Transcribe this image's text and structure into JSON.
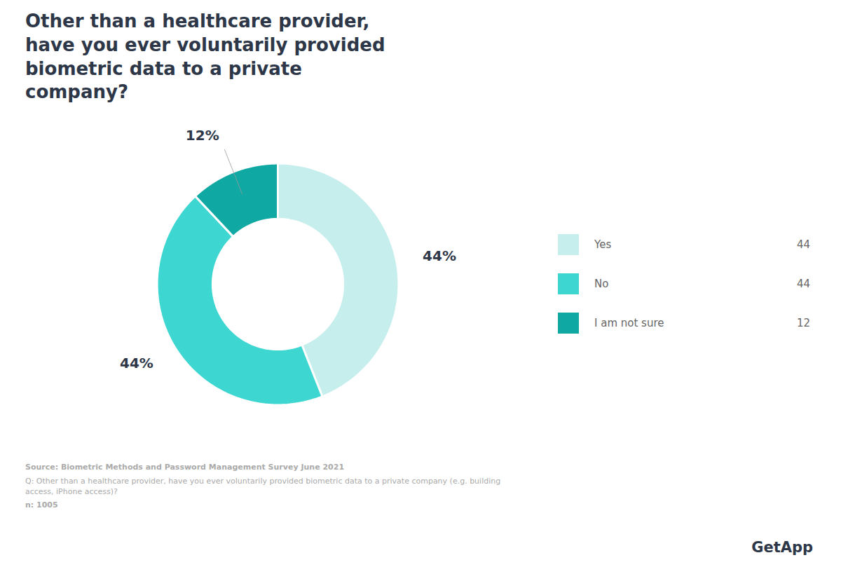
{
  "chart_data": {
    "type": "pie",
    "title": "Other than a healthcare provider,\nhave you ever voluntarily provided\nbiometric data to a private\ncompany?",
    "categories": [
      "Yes",
      "No",
      "I am not sure"
    ],
    "values": [
      44,
      44,
      12
    ],
    "value_labels": [
      "44%",
      "44%",
      "12%"
    ],
    "colors": [
      "#c5eeec",
      "#3dd6d0",
      "#0fa8a3"
    ],
    "data_labels": true,
    "legend": "right",
    "annotations": [
      "Source: Biometric Methods and Password Management Survey June 2021",
      "Q: Other than a healthcare provider, have you ever voluntarily provided biometric data to a private company (e.g. building\naccess, iPhone access)?",
      "n: 1005",
      "GetApp"
    ]
  }
}
